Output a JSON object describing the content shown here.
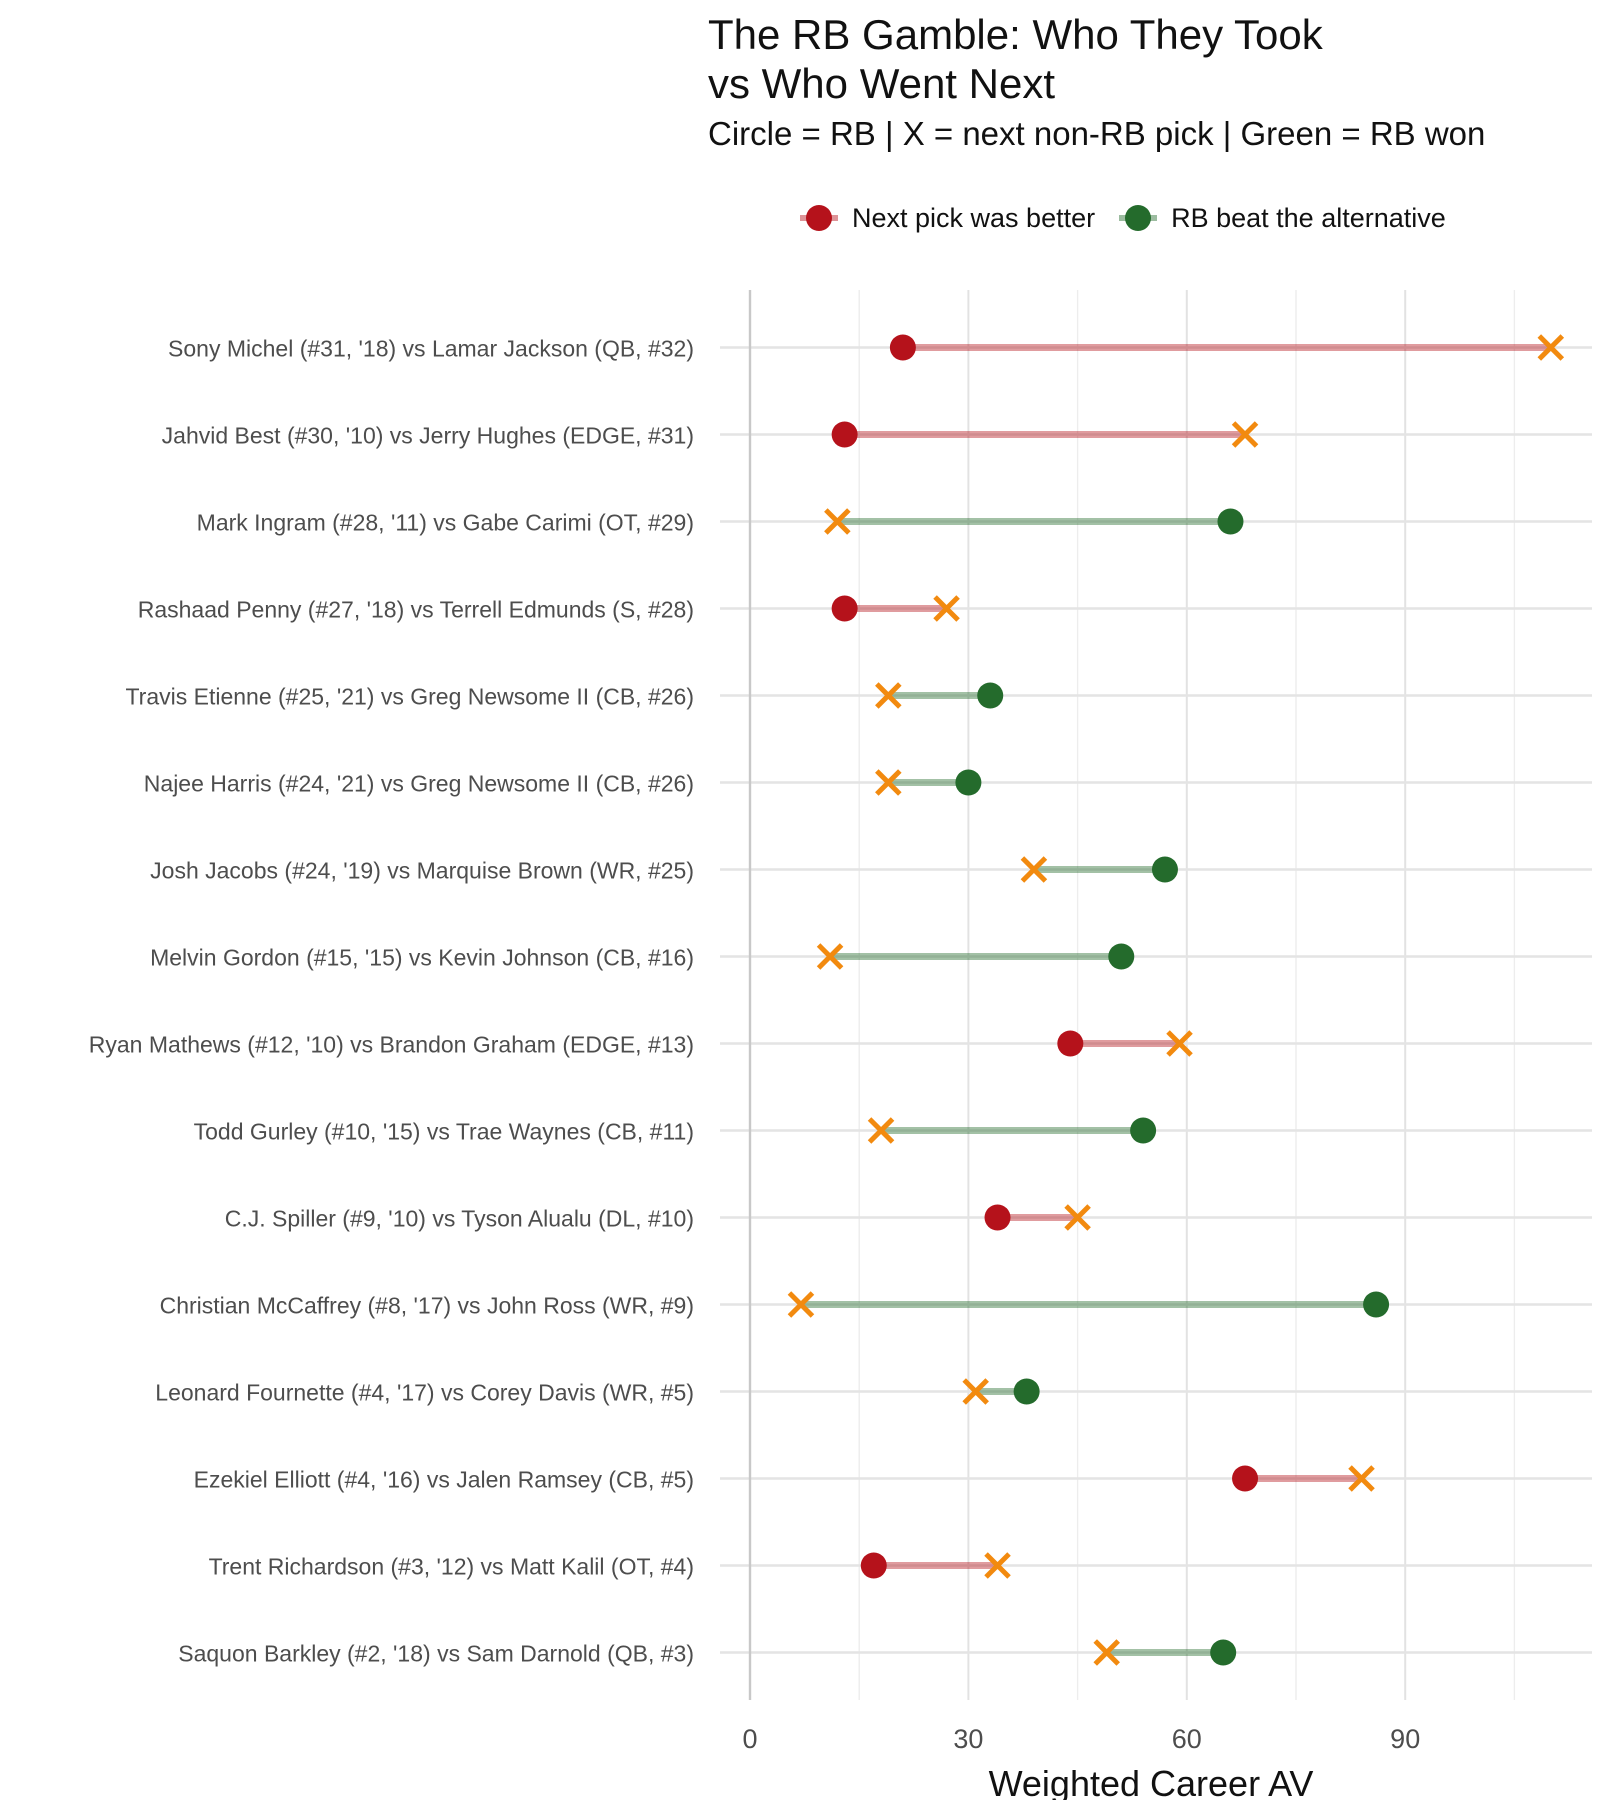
{
  "title_line1": "The RB Gamble: Who They Took",
  "title_line2": "vs Who Went Next",
  "subtitle": "Circle = RB | X = next non-RB pick | Green = RB won",
  "legend": {
    "loss": "Next pick was better",
    "win": "RB beat the alternative"
  },
  "colors": {
    "loss": "#b5121b",
    "win": "#246b2c",
    "next_pick_marker": "#f28a0f"
  },
  "chart_data": {
    "type": "dumbbell",
    "xlabel": "Weighted Career AV",
    "xlim": [
      0,
      115
    ],
    "xticks": [
      0,
      30,
      60,
      90
    ],
    "grid": true,
    "legend_position": "top",
    "rows": [
      {
        "label": "Sony Michel (#31, '18)  vs  Lamar Jackson (QB, #32)",
        "rb_av": 21,
        "next_av": 110,
        "rb_won": false
      },
      {
        "label": "Jahvid Best (#30, '10)  vs  Jerry Hughes (EDGE, #31)",
        "rb_av": 13,
        "next_av": 68,
        "rb_won": false
      },
      {
        "label": "Mark Ingram (#28, '11)  vs  Gabe Carimi (OT, #29)",
        "rb_av": 66,
        "next_av": 12,
        "rb_won": true
      },
      {
        "label": "Rashaad Penny (#27, '18)  vs  Terrell Edmunds (S, #28)",
        "rb_av": 13,
        "next_av": 27,
        "rb_won": false
      },
      {
        "label": "Travis Etienne (#25, '21)  vs  Greg Newsome II (CB, #26)",
        "rb_av": 33,
        "next_av": 19,
        "rb_won": true
      },
      {
        "label": "Najee Harris (#24, '21)  vs  Greg Newsome II (CB, #26)",
        "rb_av": 30,
        "next_av": 19,
        "rb_won": true
      },
      {
        "label": "Josh Jacobs (#24, '19)  vs  Marquise Brown (WR, #25)",
        "rb_av": 57,
        "next_av": 39,
        "rb_won": true
      },
      {
        "label": "Melvin Gordon (#15, '15)  vs  Kevin Johnson (CB, #16)",
        "rb_av": 51,
        "next_av": 11,
        "rb_won": true
      },
      {
        "label": "Ryan Mathews (#12, '10)  vs  Brandon Graham (EDGE, #13)",
        "rb_av": 44,
        "next_av": 59,
        "rb_won": false
      },
      {
        "label": "Todd Gurley (#10, '15)  vs  Trae Waynes (CB, #11)",
        "rb_av": 54,
        "next_av": 18,
        "rb_won": true
      },
      {
        "label": "C.J. Spiller (#9, '10)  vs  Tyson Alualu (DL, #10)",
        "rb_av": 34,
        "next_av": 45,
        "rb_won": false
      },
      {
        "label": "Christian McCaffrey (#8, '17)  vs  John Ross (WR, #9)",
        "rb_av": 86,
        "next_av": 7,
        "rb_won": true
      },
      {
        "label": "Leonard Fournette (#4, '17)  vs  Corey Davis (WR, #5)",
        "rb_av": 38,
        "next_av": 31,
        "rb_won": true
      },
      {
        "label": "Ezekiel Elliott (#4, '16)  vs  Jalen Ramsey (CB, #5)",
        "rb_av": 68,
        "next_av": 84,
        "rb_won": false
      },
      {
        "label": "Trent Richardson (#3, '12)  vs  Matt Kalil (OT, #4)",
        "rb_av": 17,
        "next_av": 34,
        "rb_won": false
      },
      {
        "label": "Saquon Barkley (#2, '18)  vs  Sam Darnold (QB, #3)",
        "rb_av": 65,
        "next_av": 49,
        "rb_won": true
      }
    ]
  }
}
